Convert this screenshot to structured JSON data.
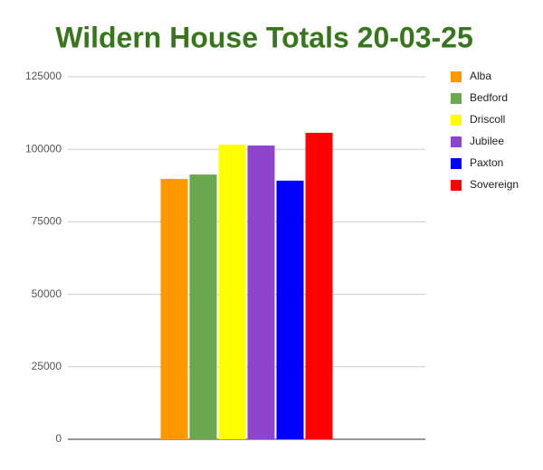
{
  "chart_data": {
    "type": "bar",
    "title": "Wildern House Totals 20-03-25",
    "categories": [
      null
    ],
    "series": [
      {
        "name": "Alba",
        "color": "#ff9900",
        "values": [
          89800
        ]
      },
      {
        "name": "Bedford",
        "color": "#6aa84f",
        "values": [
          91300
        ]
      },
      {
        "name": "Driscoll",
        "color": "#ffff00",
        "values": [
          101600
        ]
      },
      {
        "name": "Jubilee",
        "color": "#8e44cc",
        "values": [
          101300
        ]
      },
      {
        "name": "Paxton",
        "color": "#0000ff",
        "values": [
          89200
        ]
      },
      {
        "name": "Sovereign",
        "color": "#ff0000",
        "values": [
          105700
        ]
      }
    ],
    "ylim": [
      0,
      125000
    ],
    "yticks": [
      0,
      25000,
      50000,
      75000,
      100000,
      125000
    ],
    "grid": true,
    "legend": "right"
  }
}
